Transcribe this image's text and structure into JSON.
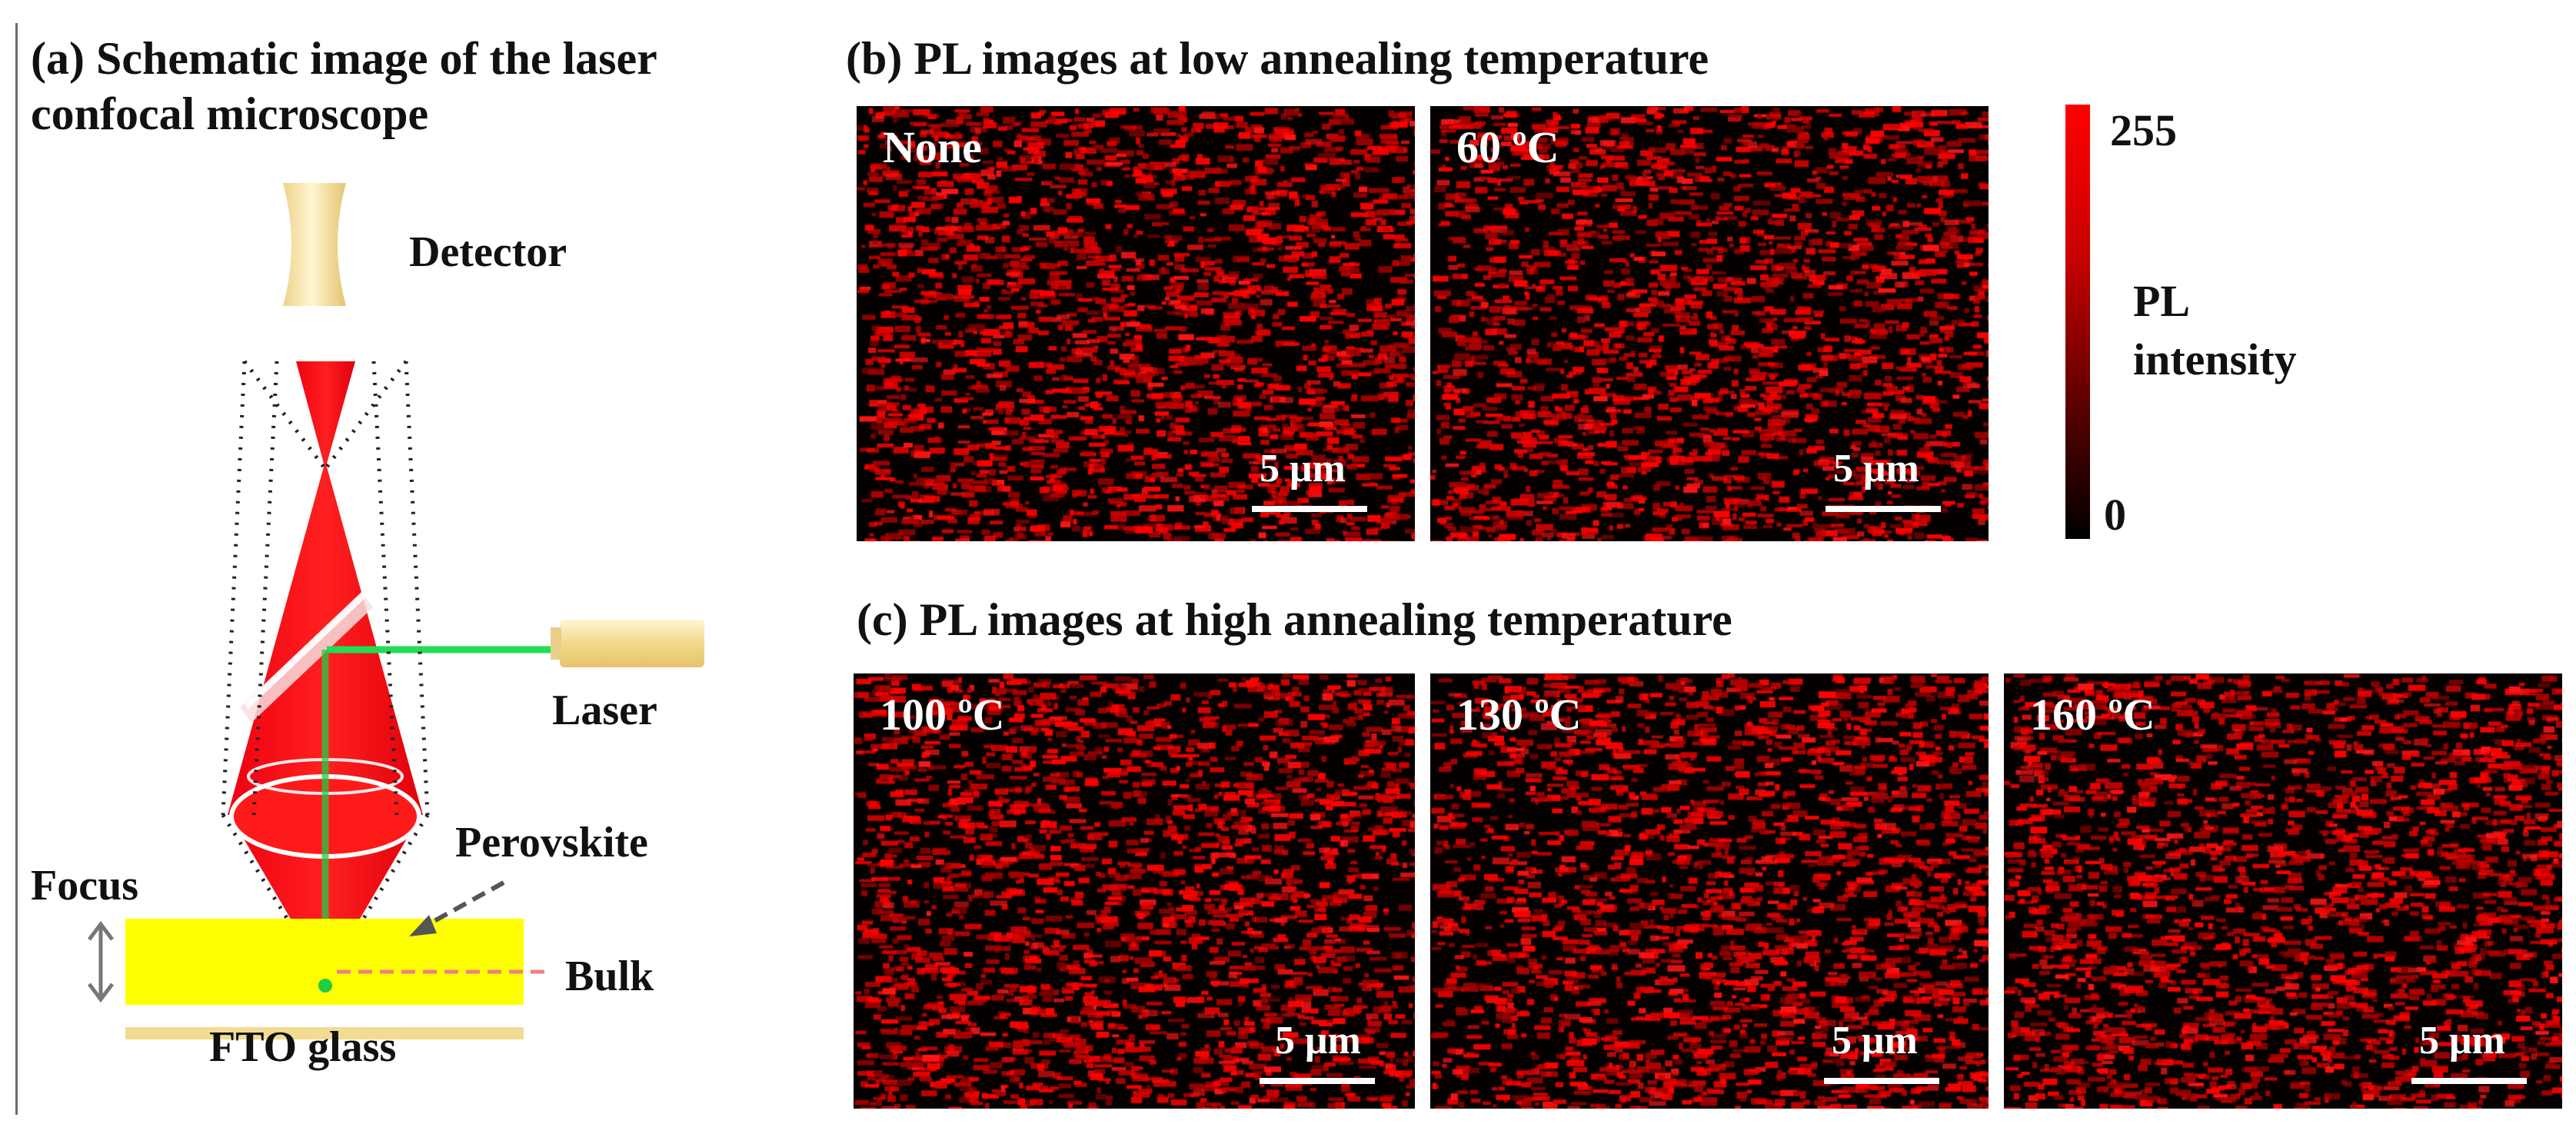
{
  "panel_a": {
    "title_line1": "(a) Schematic image of the laser",
    "title_line2": "confocal microscope",
    "labels": {
      "detector": "Detector",
      "laser": "Laser",
      "perovskite": "Perovskite",
      "focus": "Focus",
      "bulk": "Bulk",
      "fto": "FTO glass"
    },
    "colors": {
      "beam": "#e8000a",
      "laser_line": "#22dd55",
      "perovskite": "#ffff00",
      "optics": "#f4dd8c"
    }
  },
  "panel_b": {
    "title": "(b) PL images at low annealing temperature",
    "images": [
      {
        "temp": "None",
        "scale": "5 μm"
      },
      {
        "temp": "60 ºC",
        "scale": "5 μm"
      }
    ]
  },
  "panel_c": {
    "title": "(c) PL images at high annealing temperature",
    "images": [
      {
        "temp": "100 ºC",
        "scale": "5 μm"
      },
      {
        "temp": "130 ºC",
        "scale": "5 μm"
      },
      {
        "temp": "160 ºC",
        "scale": "5 μm"
      }
    ]
  },
  "colorbar": {
    "max": "255",
    "min": "0",
    "label1": "PL",
    "label2": "intensity",
    "color_high": "#ff0000",
    "color_low": "#000000"
  }
}
